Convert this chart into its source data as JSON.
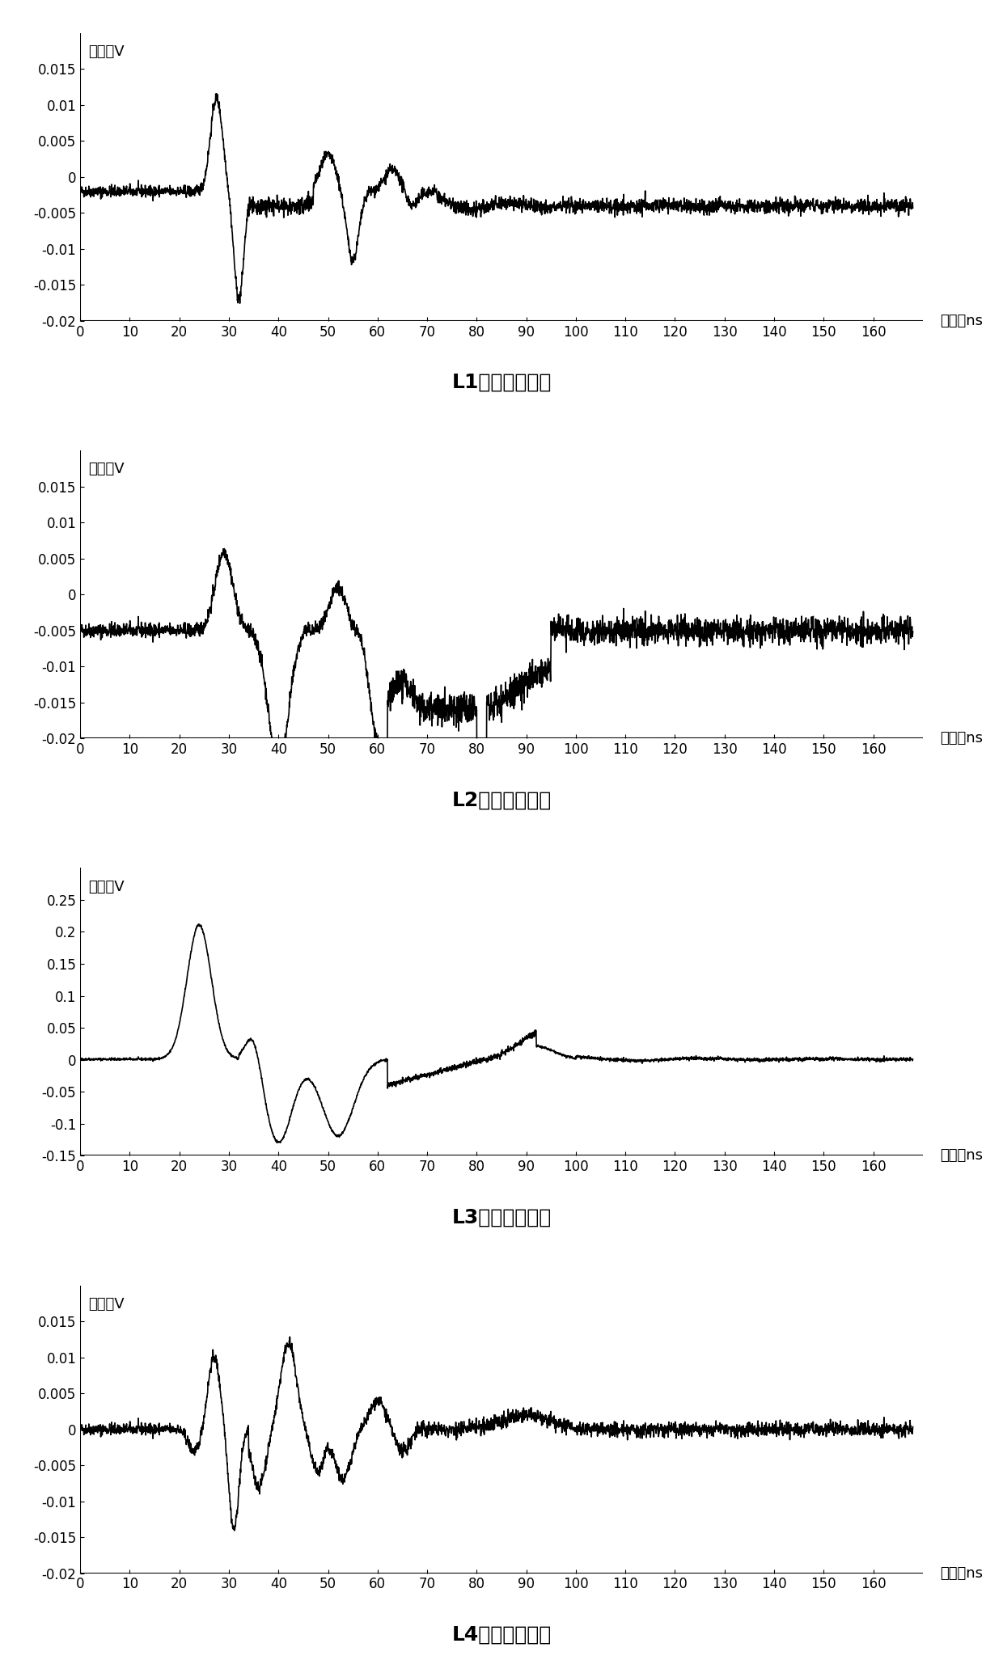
{
  "plots": [
    {
      "title": "L1通道耦合波形",
      "ylabel": "幅值：V",
      "xlabel": "时间：ns",
      "xlim": [
        0,
        170
      ],
      "ylim": [
        -0.02,
        0.02
      ],
      "yticks": [
        -0.02,
        -0.015,
        -0.01,
        -0.005,
        0,
        0.005,
        0.01,
        0.015
      ],
      "xticks": [
        0,
        10,
        20,
        30,
        40,
        50,
        60,
        70,
        80,
        90,
        100,
        110,
        120,
        130,
        140,
        150,
        160
      ],
      "baseline": -0.002,
      "noise_level": 0.0004,
      "waveform": "L1"
    },
    {
      "title": "L2通道耦合波形",
      "ylabel": "幅值：V",
      "xlabel": "时间：ns",
      "xlim": [
        0,
        170
      ],
      "ylim": [
        -0.02,
        0.02
      ],
      "yticks": [
        -0.02,
        -0.015,
        -0.01,
        -0.005,
        0,
        0.005,
        0.01,
        0.015
      ],
      "xticks": [
        0,
        10,
        20,
        30,
        40,
        50,
        60,
        70,
        80,
        90,
        100,
        110,
        120,
        130,
        140,
        150,
        160
      ],
      "baseline": -0.005,
      "noise_level": 0.0006,
      "waveform": "L2"
    },
    {
      "title": "L3通道耦合波形",
      "ylabel": "幅值：V",
      "xlabel": "时间：ns",
      "xlim": [
        0,
        170
      ],
      "ylim": [
        -0.15,
        0.3
      ],
      "yticks": [
        -0.15,
        -0.1,
        -0.05,
        0,
        0.05,
        0.1,
        0.15,
        0.2,
        0.25
      ],
      "xticks": [
        0,
        10,
        20,
        30,
        40,
        50,
        60,
        70,
        80,
        90,
        100,
        110,
        120,
        130,
        140,
        150,
        160
      ],
      "baseline": 0.001,
      "noise_level": 0.002,
      "waveform": "L3"
    },
    {
      "title": "L4通道耦合波形",
      "ylabel": "幅值：V",
      "xlabel": "时间：ns",
      "xlim": [
        0,
        170
      ],
      "ylim": [
        -0.02,
        0.02
      ],
      "yticks": [
        -0.02,
        -0.015,
        -0.01,
        -0.005,
        0,
        0.005,
        0.01,
        0.015
      ],
      "xticks": [
        0,
        10,
        20,
        30,
        40,
        50,
        60,
        70,
        80,
        90,
        100,
        110,
        120,
        130,
        140,
        150,
        160
      ],
      "baseline": 0.0,
      "noise_level": 0.0004,
      "waveform": "L4"
    }
  ],
  "line_color": "#000000",
  "line_width": 1.2,
  "background_color": "#ffffff",
  "title_fontsize": 18,
  "label_fontsize": 13,
  "tick_fontsize": 12
}
